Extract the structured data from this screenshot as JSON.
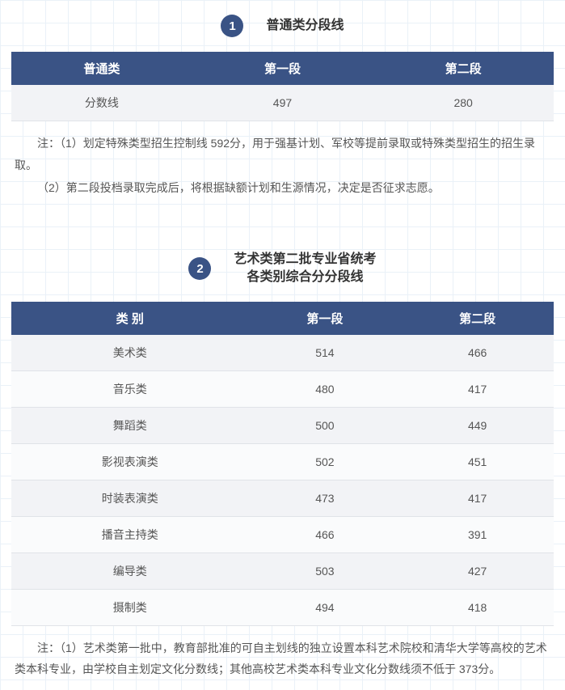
{
  "colors": {
    "header_bg": "#3a5385",
    "header_text": "#ffffff",
    "body_text": "#555555",
    "grid_line": "#eaf1f8",
    "row_odd": "#f2f3f6",
    "row_even": "#fafbfc",
    "border": "#e0e3e8"
  },
  "section1": {
    "badge": "1",
    "title": "普通类分段线",
    "table": {
      "columns": [
        "普通类",
        "第一段",
        "第二段"
      ],
      "rows": [
        [
          "分数线",
          "497",
          "280"
        ]
      ]
    },
    "notes": [
      "注：（1）划定特殊类型招生控制线 592分，用于强基计划、军校等提前录取或特殊类型招生的招生录取。",
      "（2）第二段投档录取完成后，将根据缺额计划和生源情况，决定是否征求志愿。"
    ]
  },
  "section2": {
    "badge": "2",
    "title_line1": "艺术类第二批专业省统考",
    "title_line2": "各类别综合分分段线",
    "table": {
      "columns": [
        "类 别",
        "第一段",
        "第二段"
      ],
      "rows": [
        [
          "美术类",
          "514",
          "466"
        ],
        [
          "音乐类",
          "480",
          "417"
        ],
        [
          "舞蹈类",
          "500",
          "449"
        ],
        [
          "影视表演类",
          "502",
          "451"
        ],
        [
          "时装表演类",
          "473",
          "417"
        ],
        [
          "播音主持类",
          "466",
          "391"
        ],
        [
          "编导类",
          "503",
          "427"
        ],
        [
          "摄制类",
          "494",
          "418"
        ]
      ]
    },
    "notes": [
      "注：（1）艺术类第一批中，教育部批准的可自主划线的独立设置本科艺术院校和清华大学等高校的艺术类本科专业，由学校自主划定文化分数线；其他高校艺术类本科专业文化分数线须不低于 373分。"
    ]
  }
}
